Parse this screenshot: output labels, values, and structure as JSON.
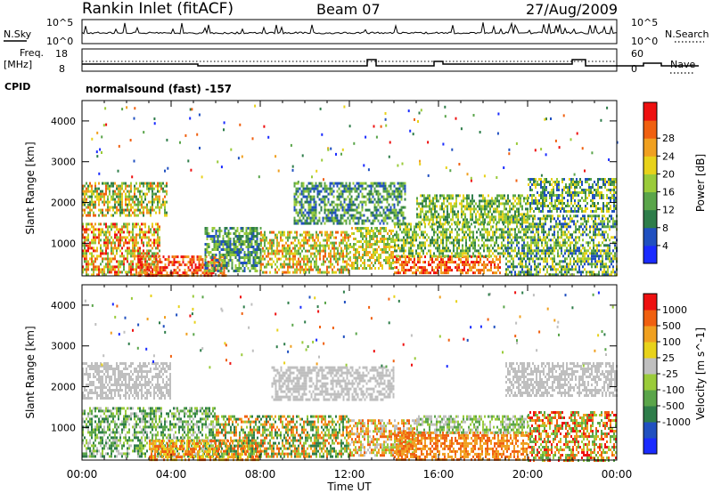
{
  "header": {
    "station": "Rankin Inlet (fitACF)",
    "beam": "Beam 07",
    "date": "27/Aug/2009"
  },
  "summary": {
    "nsky_label": "N.Sky",
    "nsky_ticks": [
      "10^5",
      "10^0"
    ],
    "nsearch_label": "N.Search",
    "nsearch_ticks": [
      "10^5",
      "10^0"
    ],
    "freq_label": "Freq.",
    "freq_unit": "[MHz]",
    "freq_ticks": [
      "18",
      "8"
    ],
    "nave_label": "Nave",
    "nave_ticks": [
      "60",
      "0"
    ],
    "cpid_label": "CPID",
    "cpid_value": "normalsound (fast) -157"
  },
  "chart_data": [
    {
      "type": "heatmap",
      "panel": "power",
      "ylabel": "Slant Range [km]",
      "xlabel": "Time UT",
      "x_ticks": [
        "00:00",
        "04:00",
        "08:00",
        "12:00",
        "16:00",
        "20:00",
        "00:00"
      ],
      "y_ticks": [
        1000,
        2000,
        3000,
        4000
      ],
      "ylim": [
        200,
        4500
      ],
      "colorbar": {
        "label": "Power [dB]",
        "ticks": [
          "4",
          "8",
          "12",
          "16",
          "20",
          "24",
          "28"
        ],
        "colors": [
          "#1a2bff",
          "#2050c0",
          "#2e7d4a",
          "#5aa54a",
          "#9acb3a",
          "#e8d21a",
          "#f0a020",
          "#f06010",
          "#ee1010"
        ]
      },
      "patches": [
        {
          "t0": 0.0,
          "t1": 3.5,
          "r0": 250,
          "r1": 1500,
          "levels": [
            3,
            4,
            5,
            6,
            7,
            8
          ]
        },
        {
          "t0": 2.5,
          "t1": 6.5,
          "r0": 200,
          "r1": 700,
          "levels": [
            6,
            7,
            8
          ]
        },
        {
          "t0": 5.5,
          "t1": 8.0,
          "r0": 300,
          "r1": 1400,
          "levels": [
            1,
            2,
            3,
            4
          ]
        },
        {
          "t0": 8.0,
          "t1": 12.0,
          "r0": 300,
          "r1": 1300,
          "levels": [
            3,
            4,
            5,
            6,
            7
          ]
        },
        {
          "t0": 12.0,
          "t1": 14.0,
          "r0": 400,
          "r1": 1400,
          "levels": [
            3,
            4,
            5,
            6
          ]
        },
        {
          "t0": 14.0,
          "t1": 18.8,
          "r0": 250,
          "r1": 700,
          "levels": [
            6,
            7,
            8
          ]
        },
        {
          "t0": 14.0,
          "t1": 19.0,
          "r0": 700,
          "r1": 1500,
          "levels": [
            2,
            3,
            4,
            5
          ]
        },
        {
          "t0": 19.0,
          "t1": 24.0,
          "r0": 200,
          "r1": 1700,
          "levels": [
            1,
            2,
            3,
            4,
            5
          ]
        },
        {
          "t0": 0.0,
          "t1": 3.8,
          "r0": 1700,
          "r1": 2500,
          "levels": [
            2,
            3,
            4,
            5,
            6,
            7
          ]
        },
        {
          "t0": 9.5,
          "t1": 14.5,
          "r0": 1500,
          "r1": 2500,
          "levels": [
            1,
            2,
            3,
            4
          ]
        },
        {
          "t0": 15.0,
          "t1": 20.0,
          "r0": 1500,
          "r1": 2200,
          "levels": [
            2,
            3,
            4,
            5
          ]
        },
        {
          "t0": 20.0,
          "t1": 24.0,
          "r0": 1800,
          "r1": 2600,
          "levels": [
            1,
            2,
            3,
            4,
            5
          ]
        }
      ]
    },
    {
      "type": "heatmap",
      "panel": "velocity",
      "ylabel": "Slant Range [km]",
      "xlabel": "Time UT",
      "x_ticks": [
        "00:00",
        "04:00",
        "08:00",
        "12:00",
        "16:00",
        "20:00",
        "00:00"
      ],
      "y_ticks": [
        1000,
        2000,
        3000,
        4000
      ],
      "ylim": [
        200,
        4500
      ],
      "colorbar": {
        "label": "Velocity [m s^-1]",
        "ticks": [
          "1000",
          "500",
          "100",
          "25",
          "-25",
          "-100",
          "-500",
          "-1000"
        ],
        "colors": [
          "#1a2bff",
          "#2050c0",
          "#2e7d4a",
          "#5aa54a",
          "#9acb3a",
          "#bfbfbf",
          "#e8d21a",
          "#f0a020",
          "#f06010",
          "#ee1010"
        ]
      },
      "patches": [
        {
          "t0": 0.0,
          "t1": 4.0,
          "r0": 1700,
          "r1": 2600,
          "levels": [
            5
          ]
        },
        {
          "t0": 0.0,
          "t1": 6.0,
          "r0": 300,
          "r1": 1500,
          "levels": [
            2,
            3,
            4,
            5
          ]
        },
        {
          "t0": 3.0,
          "t1": 8.0,
          "r0": 200,
          "r1": 700,
          "levels": [
            6,
            7,
            8
          ]
        },
        {
          "t0": 6.0,
          "t1": 12.0,
          "r0": 300,
          "r1": 1300,
          "levels": [
            2,
            3,
            4,
            7,
            8
          ]
        },
        {
          "t0": 8.5,
          "t1": 14.0,
          "r0": 1700,
          "r1": 2500,
          "levels": [
            5
          ]
        },
        {
          "t0": 12.0,
          "t1": 15.0,
          "r0": 300,
          "r1": 1200,
          "levels": [
            4,
            5,
            7,
            8
          ]
        },
        {
          "t0": 14.0,
          "t1": 20.0,
          "r0": 200,
          "r1": 900,
          "levels": [
            7,
            8
          ]
        },
        {
          "t0": 15.0,
          "t1": 20.0,
          "r0": 900,
          "r1": 1300,
          "levels": [
            3,
            4,
            5
          ]
        },
        {
          "t0": 19.0,
          "t1": 24.0,
          "r0": 1800,
          "r1": 2600,
          "levels": [
            5
          ]
        },
        {
          "t0": 20.0,
          "t1": 24.0,
          "r0": 200,
          "r1": 1400,
          "levels": [
            3,
            4,
            7,
            8,
            9
          ]
        }
      ]
    }
  ]
}
